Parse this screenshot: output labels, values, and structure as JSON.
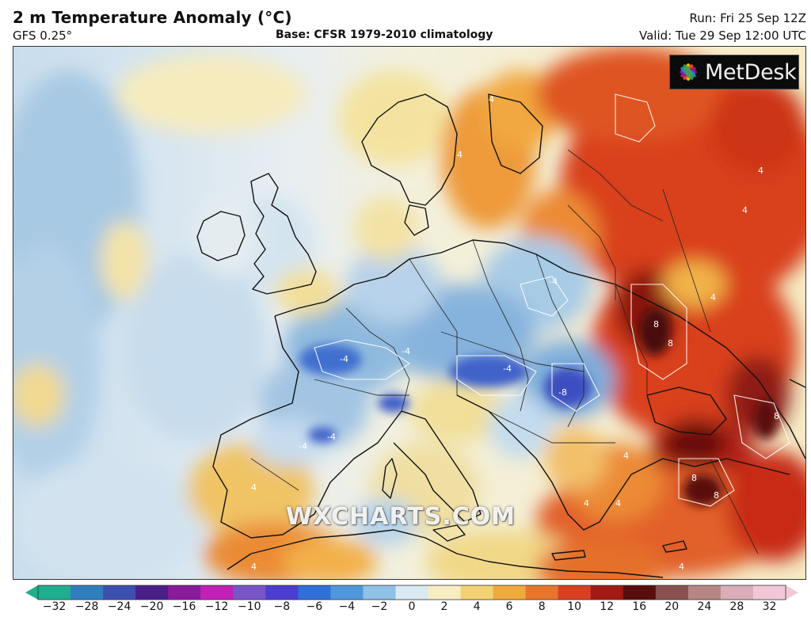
{
  "header": {
    "title": "2 m Temperature Anomaly (°C)",
    "model": "GFS 0.25°",
    "base": "Base: CFSR 1979-2010 climatology",
    "run": "Run: Fri 25 Sep 12Z",
    "valid": "Valid: Tue 29 Sep 12:00 UTC"
  },
  "logo": {
    "text": "MetDesk",
    "icon": "metdesk-flower-icon"
  },
  "watermark": "WXCHARTS.COM",
  "contour_label": "4",
  "contour_label_neg": "-4",
  "contour_label_8": "8",
  "contour_label_neg8": "-8",
  "legend": {
    "ticks": [
      "−32",
      "−28",
      "−24",
      "−20",
      "−16",
      "−12",
      "−10",
      "−8",
      "−6",
      "−4",
      "−2",
      "0",
      "2",
      "4",
      "6",
      "8",
      "10",
      "12",
      "16",
      "20",
      "24",
      "28",
      "32"
    ],
    "colors": [
      "#1fae8e",
      "#2f7fbf",
      "#3d4fb0",
      "#4a1f8a",
      "#8a1a9e",
      "#c21fb8",
      "#7a55c8",
      "#4a3dd0",
      "#2f6fd8",
      "#4f97dc",
      "#8fc0e6",
      "#dbe9f3",
      "#f6eec2",
      "#f2d272",
      "#f0a93c",
      "#e8762a",
      "#d9401f",
      "#a31914",
      "#5a0d0d",
      "#8a5050",
      "#b68585",
      "#d9aeb8",
      "#f2c8d8"
    ]
  }
}
